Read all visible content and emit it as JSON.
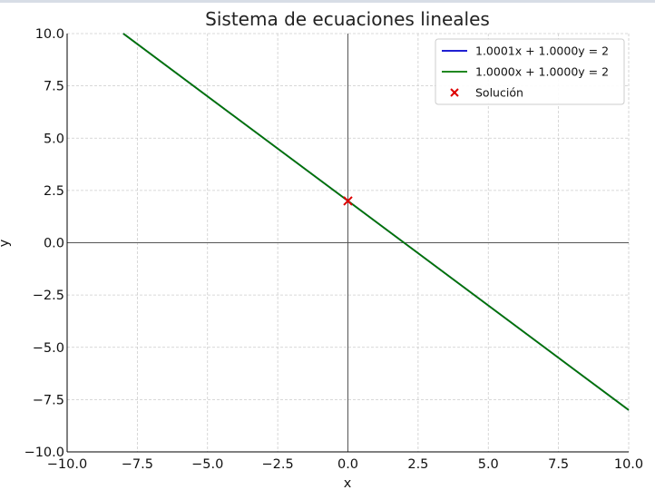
{
  "chart_data": {
    "type": "line",
    "title": "Sistema de ecuaciones lineales",
    "xlabel": "x",
    "ylabel": "y",
    "xlim": [
      -10,
      10
    ],
    "ylim": [
      -10,
      10
    ],
    "xticks": [
      -10,
      -7.5,
      -5,
      -2.5,
      0,
      2.5,
      5,
      7.5,
      10
    ],
    "yticks": [
      -10,
      -7.5,
      -5,
      -2.5,
      0,
      2.5,
      5,
      7.5,
      10
    ],
    "xtick_labels": [
      "−10.0",
      "−7.5",
      "−5.0",
      "−2.5",
      "0.0",
      "2.5",
      "5.0",
      "7.5",
      "10.0"
    ],
    "ytick_labels": [
      "−10.0",
      "−7.5",
      "−5.0",
      "−2.5",
      "0.0",
      "2.5",
      "5.0",
      "7.5",
      "10.0"
    ],
    "grid": true,
    "legend_position": "top-right",
    "series": [
      {
        "name": "1.0001x + 1.0000y = 2",
        "kind": "line",
        "color": "#0000cc",
        "x": [
          -8.0,
          10.0
        ],
        "y": [
          10.0,
          -8.0
        ]
      },
      {
        "name": "1.0000x + 1.0000y = 2",
        "kind": "line",
        "color": "#007700",
        "x": [
          -8.0,
          10.0
        ],
        "y": [
          10.0,
          -8.0
        ]
      },
      {
        "name": "Solución",
        "kind": "scatter",
        "marker": "x",
        "color": "#dd0000",
        "x": [
          0.0
        ],
        "y": [
          2.0
        ]
      }
    ]
  }
}
